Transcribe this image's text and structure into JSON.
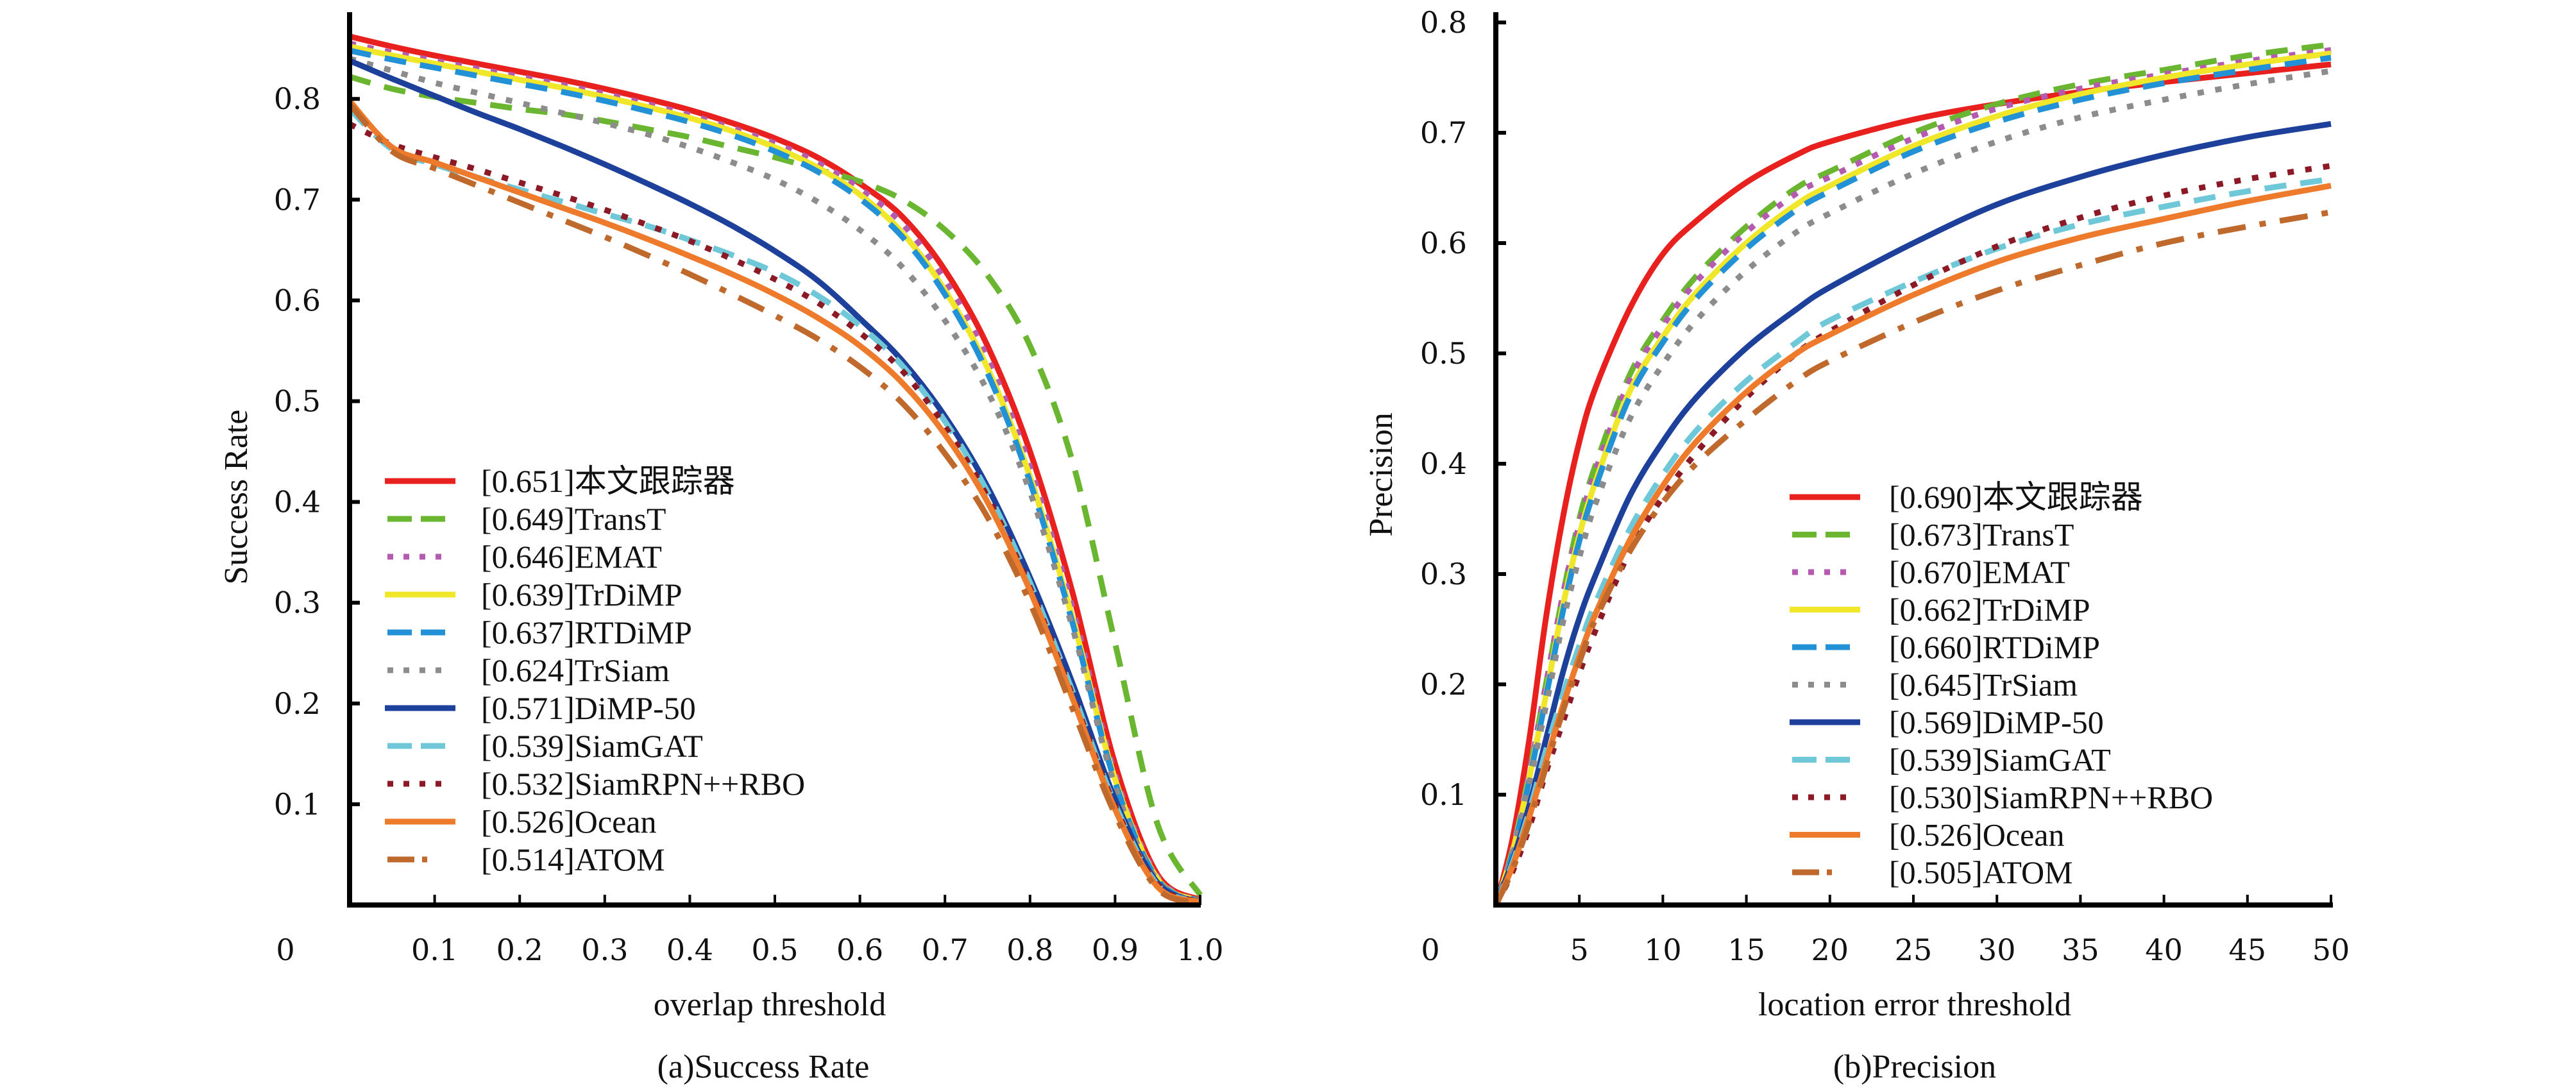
{
  "chart_data": [
    {
      "type": "line",
      "panel": "a",
      "caption": "(a)Success Rate",
      "title": "",
      "xlabel": "overlap threshold",
      "ylabel": "Success Rate",
      "xlim": [
        0,
        1.0
      ],
      "ylim": [
        0,
        0.9
      ],
      "xticks": [
        0.1,
        0.2,
        0.3,
        0.4,
        0.5,
        0.6,
        0.7,
        0.8,
        0.9,
        1.0
      ],
      "xtick_labels": [
        "0.1",
        "0.2",
        "0.3",
        "0.4",
        "0.5",
        "0.6",
        "0.7",
        "0.8",
        "0.9",
        "1.0"
      ],
      "yticks": [
        0.1,
        0.2,
        0.3,
        0.4,
        0.5,
        0.6,
        0.7,
        0.8
      ],
      "ytick_labels": [
        "0.1",
        "0.2",
        "0.3",
        "0.4",
        "0.5",
        "0.6",
        "0.7",
        "0.8"
      ],
      "origin_label": "0",
      "grid": false,
      "legend_position": "lower-left",
      "x": [
        0,
        0.05,
        0.1,
        0.15,
        0.2,
        0.25,
        0.3,
        0.35,
        0.4,
        0.45,
        0.5,
        0.55,
        0.6,
        0.65,
        0.7,
        0.75,
        0.8,
        0.85,
        0.9,
        0.95,
        1.0
      ],
      "series": [
        {
          "name": "[0.651]本文跟踪器",
          "score": "0.651",
          "label": "本文跟踪器",
          "color": "#e8211f",
          "style": "solid",
          "values": [
            0.862,
            0.852,
            0.843,
            0.835,
            0.827,
            0.819,
            0.81,
            0.8,
            0.789,
            0.776,
            0.761,
            0.742,
            0.716,
            0.683,
            0.63,
            0.555,
            0.45,
            0.31,
            0.14,
            0.03,
            0.005
          ]
        },
        {
          "name": "[0.649]TransT",
          "score": "0.649",
          "label": "TransT",
          "color": "#6ab630",
          "style": "dashed",
          "values": [
            0.822,
            0.81,
            0.802,
            0.796,
            0.79,
            0.785,
            0.778,
            0.77,
            0.762,
            0.752,
            0.742,
            0.73,
            0.718,
            0.7,
            0.67,
            0.625,
            0.555,
            0.44,
            0.26,
            0.08,
            0.01
          ]
        },
        {
          "name": "[0.646]EMAT",
          "score": "0.646",
          "label": "EMAT",
          "color": "#b45aaf",
          "style": "dotted",
          "values": [
            0.855,
            0.846,
            0.838,
            0.83,
            0.822,
            0.814,
            0.805,
            0.795,
            0.784,
            0.771,
            0.756,
            0.737,
            0.711,
            0.676,
            0.62,
            0.543,
            0.435,
            0.295,
            0.13,
            0.028,
            0.004
          ]
        },
        {
          "name": "[0.639]TrDiMP",
          "score": "0.639",
          "label": "TrDiMP",
          "color": "#f0e62a",
          "style": "solid",
          "values": [
            0.852,
            0.843,
            0.835,
            0.827,
            0.819,
            0.811,
            0.802,
            0.792,
            0.781,
            0.768,
            0.752,
            0.732,
            0.705,
            0.667,
            0.61,
            0.533,
            0.425,
            0.285,
            0.125,
            0.026,
            0.004
          ]
        },
        {
          "name": "[0.637]RTDiMP",
          "score": "0.637",
          "label": "RTDiMP",
          "color": "#2391d6",
          "style": "dashed",
          "values": [
            0.848,
            0.839,
            0.831,
            0.823,
            0.815,
            0.807,
            0.798,
            0.788,
            0.777,
            0.764,
            0.748,
            0.728,
            0.701,
            0.663,
            0.606,
            0.528,
            0.42,
            0.28,
            0.122,
            0.025,
            0.004
          ]
        },
        {
          "name": "[0.624]TrSiam",
          "score": "0.624",
          "label": "TrSiam",
          "color": "#8c8c8c",
          "style": "dotted",
          "values": [
            0.84,
            0.828,
            0.816,
            0.806,
            0.796,
            0.786,
            0.776,
            0.765,
            0.752,
            0.737,
            0.72,
            0.698,
            0.67,
            0.633,
            0.58,
            0.51,
            0.41,
            0.275,
            0.118,
            0.024,
            0.004
          ]
        },
        {
          "name": "[0.571]DiMP-50",
          "score": "0.571",
          "label": "DiMP-50",
          "color": "#1d419b",
          "style": "solid",
          "values": [
            0.838,
            0.82,
            0.803,
            0.786,
            0.77,
            0.753,
            0.735,
            0.716,
            0.696,
            0.674,
            0.649,
            0.62,
            0.582,
            0.54,
            0.485,
            0.415,
            0.325,
            0.22,
            0.105,
            0.022,
            0.003
          ]
        },
        {
          "name": "[0.539]SiamGAT",
          "score": "0.539",
          "label": "SiamGAT",
          "color": "#6ec8d8",
          "style": "dashed",
          "values": [
            0.79,
            0.75,
            0.735,
            0.722,
            0.71,
            0.698,
            0.686,
            0.674,
            0.66,
            0.645,
            0.628,
            0.605,
            0.575,
            0.535,
            0.48,
            0.41,
            0.32,
            0.212,
            0.1,
            0.02,
            0.003
          ]
        },
        {
          "name": "[0.532]SiamRPN++RBO",
          "score": "0.532",
          "label": "SiamRPN++RBO",
          "color": "#8b1a26",
          "style": "dotted",
          "values": [
            0.775,
            0.755,
            0.742,
            0.73,
            0.717,
            0.704,
            0.69,
            0.675,
            0.659,
            0.641,
            0.621,
            0.598,
            0.568,
            0.53,
            0.475,
            0.405,
            0.315,
            0.208,
            0.098,
            0.02,
            0.003
          ]
        },
        {
          "name": "[0.526]Ocean",
          "score": "0.526",
          "label": "Ocean",
          "color": "#ee7a2c",
          "style": "solid",
          "values": [
            0.798,
            0.752,
            0.737,
            0.722,
            0.707,
            0.692,
            0.677,
            0.661,
            0.644,
            0.626,
            0.606,
            0.583,
            0.555,
            0.518,
            0.467,
            0.4,
            0.312,
            0.205,
            0.095,
            0.018,
            0.003
          ]
        },
        {
          "name": "[0.514]ATOM",
          "score": "0.514",
          "label": "ATOM",
          "color": "#c0692d",
          "style": "dashdot",
          "values": [
            0.795,
            0.748,
            0.731,
            0.714,
            0.697,
            0.68,
            0.663,
            0.645,
            0.626,
            0.606,
            0.585,
            0.562,
            0.534,
            0.498,
            0.448,
            0.385,
            0.3,
            0.195,
            0.09,
            0.016,
            0.002
          ]
        }
      ]
    },
    {
      "type": "line",
      "panel": "b",
      "caption": "(b)Precision",
      "title": "",
      "xlabel": "location error threshold",
      "ylabel": "Precision",
      "xlim": [
        0,
        50
      ],
      "ylim": [
        0,
        0.8
      ],
      "xticks": [
        5,
        10,
        15,
        20,
        25,
        30,
        35,
        40,
        45,
        50
      ],
      "xtick_labels": [
        "5",
        "10",
        "15",
        "20",
        "25",
        "30",
        "35",
        "40",
        "45",
        "50"
      ],
      "yticks": [
        0.1,
        0.2,
        0.3,
        0.4,
        0.5,
        0.6,
        0.7,
        0.8
      ],
      "ytick_labels": [
        "0.1",
        "0.2",
        "0.3",
        "0.4",
        "0.5",
        "0.6",
        "0.7",
        "0.8"
      ],
      "origin_label": "0",
      "grid": false,
      "legend_position": "lower-right",
      "x": [
        0,
        1,
        2,
        3,
        4,
        5,
        6,
        8,
        10,
        12,
        15,
        18,
        20,
        25,
        30,
        35,
        40,
        45,
        50
      ],
      "series": [
        {
          "name": "[0.690]本文跟踪器",
          "score": "0.690",
          "label": "本文跟踪器",
          "color": "#e8211f",
          "style": "solid",
          "values": [
            0.0,
            0.06,
            0.15,
            0.26,
            0.35,
            0.42,
            0.47,
            0.54,
            0.59,
            0.62,
            0.655,
            0.68,
            0.692,
            0.712,
            0.726,
            0.737,
            0.746,
            0.754,
            0.762
          ]
        },
        {
          "name": "[0.673]TransT",
          "score": "0.673",
          "label": "TransT",
          "color": "#6ab630",
          "style": "dashed",
          "values": [
            0.0,
            0.05,
            0.12,
            0.2,
            0.28,
            0.35,
            0.4,
            0.48,
            0.53,
            0.57,
            0.615,
            0.65,
            0.665,
            0.7,
            0.726,
            0.744,
            0.757,
            0.77,
            0.78
          ]
        },
        {
          "name": "[0.670]EMAT",
          "score": "0.670",
          "label": "EMAT",
          "color": "#b45aaf",
          "style": "dotted",
          "values": [
            0.0,
            0.05,
            0.12,
            0.2,
            0.28,
            0.345,
            0.395,
            0.475,
            0.525,
            0.565,
            0.61,
            0.645,
            0.66,
            0.695,
            0.722,
            0.74,
            0.753,
            0.765,
            0.775
          ]
        },
        {
          "name": "[0.662]TrDiMP",
          "score": "0.662",
          "label": "TrDiMP",
          "color": "#f0e62a",
          "style": "solid",
          "values": [
            0.0,
            0.048,
            0.115,
            0.19,
            0.27,
            0.335,
            0.385,
            0.465,
            0.515,
            0.555,
            0.6,
            0.635,
            0.652,
            0.688,
            0.715,
            0.735,
            0.75,
            0.762,
            0.772
          ]
        },
        {
          "name": "[0.660]RTDiMP",
          "score": "0.660",
          "label": "RTDiMP",
          "color": "#2391d6",
          "style": "dashed",
          "values": [
            0.0,
            0.047,
            0.113,
            0.188,
            0.265,
            0.33,
            0.38,
            0.46,
            0.51,
            0.55,
            0.595,
            0.63,
            0.647,
            0.683,
            0.71,
            0.73,
            0.745,
            0.757,
            0.768
          ]
        },
        {
          "name": "[0.645]TrSiam",
          "score": "0.645",
          "label": "TrSiam",
          "color": "#8c8c8c",
          "style": "dotted",
          "values": [
            0.0,
            0.045,
            0.11,
            0.18,
            0.255,
            0.315,
            0.365,
            0.44,
            0.49,
            0.53,
            0.575,
            0.61,
            0.627,
            0.663,
            0.692,
            0.714,
            0.73,
            0.744,
            0.756
          ]
        },
        {
          "name": "[0.569]DiMP-50",
          "score": "0.569",
          "label": "DiMP-50",
          "color": "#1d419b",
          "style": "solid",
          "values": [
            0.0,
            0.04,
            0.09,
            0.15,
            0.21,
            0.26,
            0.3,
            0.37,
            0.42,
            0.46,
            0.505,
            0.54,
            0.56,
            0.6,
            0.635,
            0.66,
            0.68,
            0.696,
            0.708
          ]
        },
        {
          "name": "[0.539]SiamGAT",
          "score": "0.539",
          "label": "SiamGAT",
          "color": "#6ec8d8",
          "style": "dashed",
          "values": [
            0.0,
            0.038,
            0.085,
            0.14,
            0.19,
            0.235,
            0.275,
            0.34,
            0.39,
            0.43,
            0.475,
            0.51,
            0.53,
            0.565,
            0.595,
            0.617,
            0.633,
            0.647,
            0.658
          ]
        },
        {
          "name": "[0.530]SiamRPN++RBO",
          "score": "0.530",
          "label": "SiamRPN++RBO",
          "color": "#8b1a26",
          "style": "dotted",
          "values": [
            0.0,
            0.03,
            0.07,
            0.12,
            0.165,
            0.21,
            0.25,
            0.32,
            0.37,
            0.41,
            0.46,
            0.5,
            0.52,
            0.562,
            0.597,
            0.623,
            0.643,
            0.658,
            0.67
          ]
        },
        {
          "name": "[0.526]Ocean",
          "score": "0.526",
          "label": "Ocean",
          "color": "#ee7a2c",
          "style": "solid",
          "values": [
            0.0,
            0.035,
            0.08,
            0.13,
            0.18,
            0.225,
            0.265,
            0.33,
            0.38,
            0.42,
            0.465,
            0.5,
            0.517,
            0.553,
            0.583,
            0.605,
            0.622,
            0.638,
            0.652
          ]
        },
        {
          "name": "[0.505]ATOM",
          "score": "0.505",
          "label": "ATOM",
          "color": "#c0692d",
          "style": "dashdot",
          "values": [
            0.0,
            0.032,
            0.075,
            0.125,
            0.175,
            0.22,
            0.26,
            0.32,
            0.365,
            0.4,
            0.44,
            0.475,
            0.493,
            0.528,
            0.557,
            0.58,
            0.6,
            0.615,
            0.628
          ]
        }
      ]
    }
  ]
}
